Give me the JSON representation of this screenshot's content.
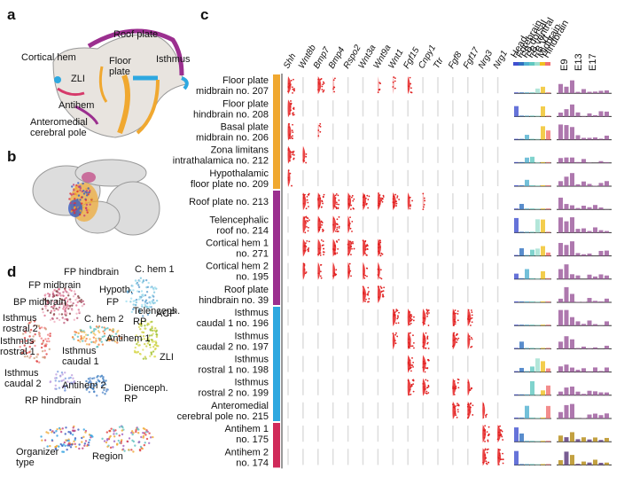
{
  "panels": {
    "a": "a",
    "b": "b",
    "c": "c",
    "d": "d"
  },
  "panel_a": {
    "labels": [
      [
        "Roof plate"
      ],
      [
        "Cortical hem"
      ],
      [
        "Floor",
        "plate"
      ],
      [
        "Isthmus"
      ],
      [
        "ZLI"
      ],
      [
        "Antihem"
      ],
      [
        "Anteromedial",
        "cerebral pole"
      ]
    ]
  },
  "panel_d": {
    "labels": [
      [
        "FP hindbrain"
      ],
      [
        "C. hem 1"
      ],
      [
        "FP midbrain"
      ],
      [
        "Hypoth."
      ],
      [
        "BP midbrain"
      ],
      [
        "FP"
      ],
      [
        "C. hem 2"
      ],
      [
        "ACP"
      ],
      [
        "Isthmus",
        "rostral 2"
      ],
      [
        "Telenceph.",
        "RP"
      ],
      [
        "Isthmus",
        "rostral 1"
      ],
      [
        "Isthmus",
        "caudal 1"
      ],
      [
        "Antihem 1"
      ],
      [
        "ZLI"
      ],
      [
        "Isthmus",
        "caudal 2"
      ],
      [
        "Antihem 2"
      ],
      [
        "Dienceph.",
        "RP"
      ],
      [
        "RP hindbrain"
      ],
      [
        "Organizer",
        "type"
      ],
      [
        "Region"
      ]
    ]
  },
  "panel_c": {
    "genes": [
      "Shh",
      "Wnt8b",
      "Bmp7",
      "Bmp4",
      "Rspo2",
      "Wnt3a",
      "Wnt9a",
      "Wnt1",
      "Fgf15",
      "Cnpy1",
      "Ttr",
      "Fgf8",
      "Fgf17",
      "Nrg3",
      "Nrg1"
    ],
    "regions": [
      "Head",
      "Forebrain",
      "FB dorsal",
      "FB ventral",
      "FB VL",
      "Midbrain",
      "Hindbrain"
    ],
    "ages": [
      "E9",
      "E13",
      "E17"
    ],
    "rows": [
      [
        "Floor plate",
        "midbrain no. 207"
      ],
      [
        "Floor plate",
        "hindbrain no. 208"
      ],
      [
        "Basal plate",
        "midbrain no. 206"
      ],
      [
        "Zona limitans",
        "intrathalamica no. 212"
      ],
      [
        "Hypothalamic",
        "floor plate no. 209"
      ],
      [
        "Roof plate no. 213"
      ],
      [
        "Telencephalic",
        "roof no. 214"
      ],
      [
        "Cortical hem 1",
        "no. 271"
      ],
      [
        "Cortical hem 2",
        "no. 195"
      ],
      [
        "Roof plate",
        "hindbrain no. 39"
      ],
      [
        "Isthmus",
        "caudal 1 no. 196"
      ],
      [
        "Isthmus",
        "caudal 2 no. 197"
      ],
      [
        "Isthmus",
        "rostral 1 no. 198"
      ],
      [
        "Isthmus",
        "rostral 2 no. 199"
      ],
      [
        "Anteromedial",
        "cerebral pole no. 215"
      ],
      [
        "Antihem 1",
        "no. 175"
      ],
      [
        "Antihem 2",
        "no. 174"
      ]
    ]
  }
}
